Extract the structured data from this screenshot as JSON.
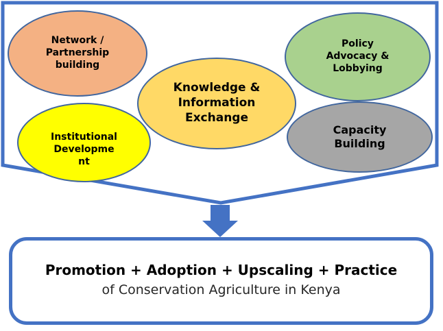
{
  "colors": {
    "frame": "#4472c4",
    "oval_border": "#41669e",
    "network": "#f4b183",
    "policy": "#a9d18e",
    "knowledge": "#ffd966",
    "institutional": "#ffff00",
    "capacity": "#a6a6a6"
  },
  "ovals": {
    "network": "Network /\nPartnership\nbuilding",
    "policy": "Policy\nAdvocacy &\nLobbying",
    "knowledge": "Knowledge &\nInformation\nExchange",
    "institutional": "Institutional\nDevelopme\nnt",
    "capacity": "Capacity\nBuilding"
  },
  "result": {
    "title": "Promotion + Adoption + Upscaling + Practice",
    "subtitle": "of Conservation Agriculture in Kenya"
  }
}
